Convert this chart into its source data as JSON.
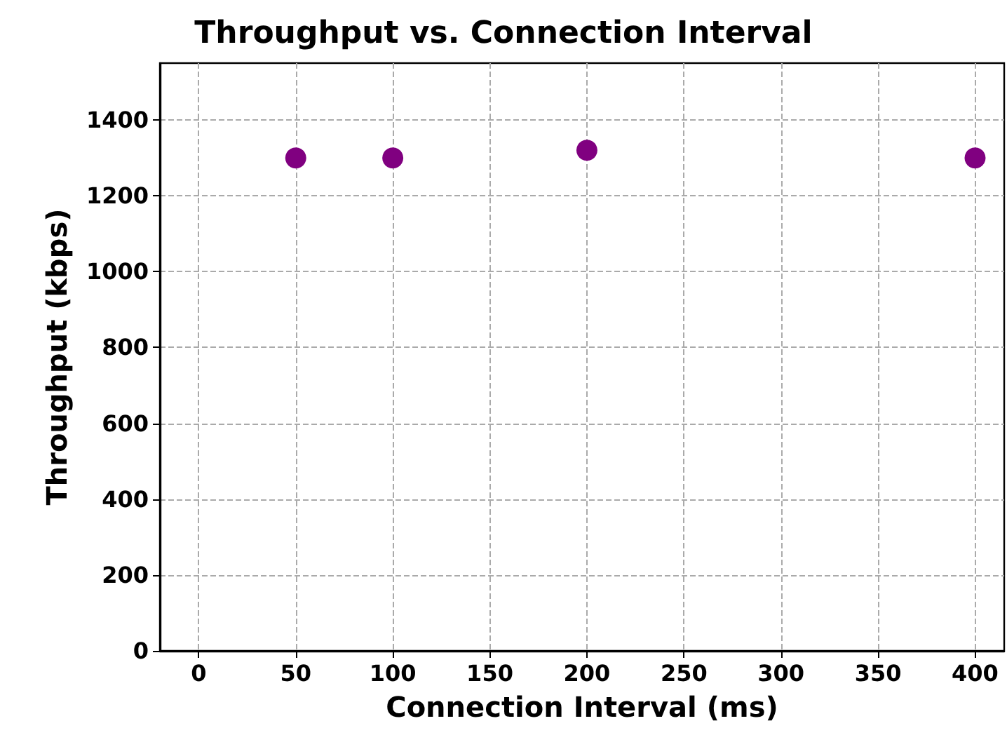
{
  "chart_data": {
    "type": "scatter",
    "title": "Throughput vs. Connection Interval",
    "xlabel": "Connection Interval (ms)",
    "ylabel": "Throughput (kbps)",
    "x": [
      50,
      100,
      200,
      400
    ],
    "series": [
      {
        "color": "#800080",
        "values": [
          1300,
          1300,
          1320,
          1300
        ]
      }
    ],
    "xlim": [
      -20,
      415
    ],
    "xticks": [
      0,
      50,
      100,
      150,
      200,
      250,
      300,
      350,
      400
    ],
    "ylim": [
      0,
      1550
    ],
    "yticks": [
      0,
      200,
      400,
      600,
      800,
      1000,
      1200,
      1400
    ],
    "grid": true,
    "marker": "circle"
  }
}
